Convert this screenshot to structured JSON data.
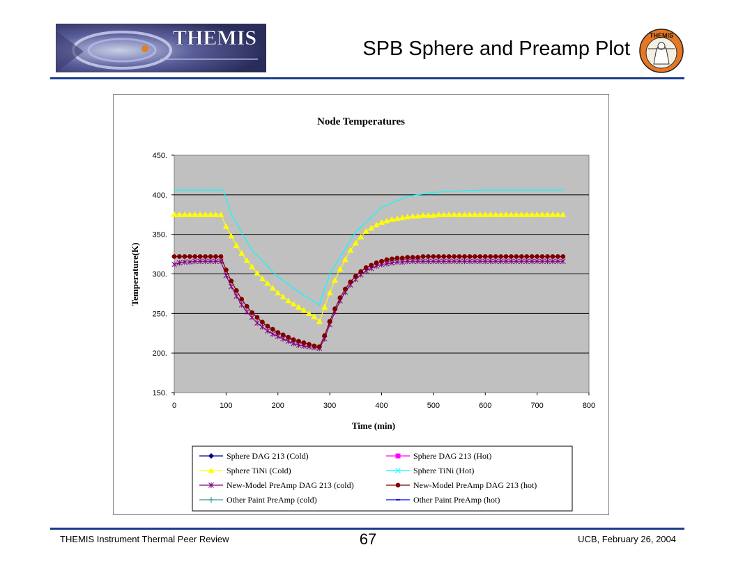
{
  "slide": {
    "title": "SPB Sphere and Preamp Plot",
    "logo_text": "THEMIS",
    "seal_text": "THEMIS",
    "footer_left": "THEMIS Instrument Thermal Peer Review",
    "page_number": "67",
    "footer_right": "UCB, February 26, 2004",
    "accent_color": "#1a3c8c"
  },
  "chart_data": {
    "type": "line",
    "title": "Node Temperatures",
    "xlabel": "Time (min)",
    "ylabel": "Temperature(K)",
    "xlim": [
      0,
      800
    ],
    "ylim": [
      150,
      450
    ],
    "xticks": [
      0,
      100,
      200,
      300,
      400,
      500,
      600,
      700,
      800
    ],
    "xtick_labels": [
      "0",
      "100",
      "200",
      "300",
      "400",
      "500",
      "600",
      "700",
      "800"
    ],
    "yticks": [
      150,
      200,
      250,
      300,
      350,
      400,
      450
    ],
    "ytick_labels": [
      "150.",
      "200.",
      "250.",
      "300.",
      "350.",
      "400.",
      "450."
    ],
    "grid": "horizontal",
    "plot_background": "#c0c0c0",
    "legend_position": "bottom",
    "series": [
      {
        "name": "Sphere DAG 213 (Cold)",
        "color": "#000080",
        "marker": "diamond",
        "x": [],
        "y": []
      },
      {
        "name": "Sphere DAG 213 (Hot)",
        "color": "#ff00ff",
        "marker": "square",
        "x": [],
        "y": []
      },
      {
        "name": "Sphere TiNi (Cold)",
        "color": "#ffff00",
        "marker": "triangle",
        "x": [
          0,
          10,
          20,
          30,
          40,
          50,
          60,
          70,
          80,
          90,
          100,
          110,
          120,
          130,
          140,
          150,
          160,
          170,
          180,
          190,
          200,
          210,
          220,
          230,
          240,
          250,
          260,
          270,
          280,
          290,
          300,
          310,
          320,
          330,
          340,
          350,
          360,
          370,
          380,
          390,
          400,
          410,
          420,
          430,
          440,
          450,
          460,
          470,
          480,
          490,
          500,
          510,
          520,
          530,
          540,
          550,
          560,
          570,
          580,
          590,
          600,
          610,
          620,
          630,
          640,
          650,
          660,
          670,
          680,
          690,
          700,
          710,
          720,
          730,
          740,
          750
        ],
        "y": [
          375,
          375,
          375,
          375,
          375,
          375,
          375,
          375,
          375,
          375,
          360,
          348,
          336,
          326,
          317,
          309,
          301,
          294,
          288,
          282,
          276,
          271,
          266,
          262,
          258,
          254,
          250,
          246,
          240,
          258,
          276,
          292,
          306,
          318,
          330,
          339,
          347,
          354,
          358,
          362,
          365,
          367,
          369,
          370,
          371,
          372,
          373,
          373,
          374,
          374,
          374,
          375,
          375,
          375,
          375,
          375,
          375,
          375,
          375,
          375,
          375,
          375,
          375,
          375,
          375,
          375,
          375,
          375,
          375,
          375,
          375,
          375,
          375,
          375,
          375,
          375
        ]
      },
      {
        "name": "Sphere TiNi (Hot)",
        "color": "#00ffff",
        "marker": "x",
        "x": [
          0,
          50,
          90,
          95,
          110,
          150,
          200,
          250,
          280,
          300,
          350,
          400,
          450,
          500,
          550,
          600,
          650,
          700,
          750
        ],
        "y": [
          406,
          406,
          406,
          406,
          375,
          330,
          296,
          273,
          261,
          300,
          353,
          384,
          398,
          403,
          405,
          406,
          406,
          406,
          406
        ]
      },
      {
        "name": "New-Model PreAmp DAG 213 (cold)",
        "color": "#800080",
        "marker": "star",
        "x": [
          0,
          10,
          20,
          30,
          40,
          50,
          60,
          70,
          80,
          90,
          100,
          110,
          120,
          130,
          140,
          150,
          160,
          170,
          180,
          190,
          200,
          210,
          220,
          230,
          240,
          250,
          260,
          270,
          280,
          290,
          300,
          310,
          320,
          330,
          340,
          350,
          360,
          370,
          380,
          390,
          400,
          410,
          420,
          430,
          440,
          450,
          460,
          470,
          480,
          490,
          500,
          510,
          520,
          530,
          540,
          550,
          560,
          570,
          580,
          590,
          600,
          610,
          620,
          630,
          640,
          650,
          660,
          670,
          680,
          690,
          700,
          710,
          720,
          730,
          740,
          750
        ],
        "y": [
          312,
          314,
          315,
          315,
          316,
          316,
          316,
          316,
          316,
          316,
          298,
          284,
          272,
          261,
          252,
          245,
          238,
          233,
          228,
          224,
          221,
          218,
          215,
          212,
          210,
          209,
          208,
          207,
          206,
          218,
          236,
          252,
          266,
          277,
          286,
          293,
          299,
          304,
          307,
          310,
          312,
          313,
          314,
          315,
          315,
          316,
          316,
          316,
          316,
          316,
          316,
          316,
          316,
          316,
          316,
          316,
          316,
          316,
          316,
          316,
          316,
          316,
          316,
          316,
          316,
          316,
          316,
          316,
          316,
          316,
          316,
          316,
          316,
          316,
          316,
          316
        ]
      },
      {
        "name": "New-Model PreAmp DAG 213 (hot)",
        "color": "#800000",
        "marker": "circle",
        "x": [
          0,
          10,
          20,
          30,
          40,
          50,
          60,
          70,
          80,
          90,
          100,
          110,
          120,
          130,
          140,
          150,
          160,
          170,
          180,
          190,
          200,
          210,
          220,
          230,
          240,
          250,
          260,
          270,
          280,
          290,
          300,
          310,
          320,
          330,
          340,
          350,
          360,
          370,
          380,
          390,
          400,
          410,
          420,
          430,
          440,
          450,
          460,
          470,
          480,
          490,
          500,
          510,
          520,
          530,
          540,
          550,
          560,
          570,
          580,
          590,
          600,
          610,
          620,
          630,
          640,
          650,
          660,
          670,
          680,
          690,
          700,
          710,
          720,
          730,
          740,
          750
        ],
        "y": [
          322,
          322,
          322,
          322,
          322,
          322,
          322,
          322,
          322,
          322,
          305,
          291,
          279,
          268,
          259,
          251,
          245,
          239,
          234,
          230,
          226,
          223,
          220,
          217,
          215,
          213,
          211,
          209,
          208,
          222,
          240,
          256,
          270,
          281,
          290,
          297,
          303,
          308,
          311,
          314,
          316,
          318,
          319,
          320,
          320,
          321,
          321,
          321,
          322,
          322,
          322,
          322,
          322,
          322,
          322,
          322,
          322,
          322,
          322,
          322,
          322,
          322,
          322,
          322,
          322,
          322,
          322,
          322,
          322,
          322,
          322,
          322,
          322,
          322,
          322,
          322
        ]
      },
      {
        "name": "Other Paint PreAmp (cold)",
        "color": "#339999",
        "marker": "plus",
        "x": [],
        "y": []
      },
      {
        "name": "Other Paint PreAmp (hot)",
        "color": "#0000ff",
        "marker": "dash",
        "x": [],
        "y": []
      }
    ]
  }
}
